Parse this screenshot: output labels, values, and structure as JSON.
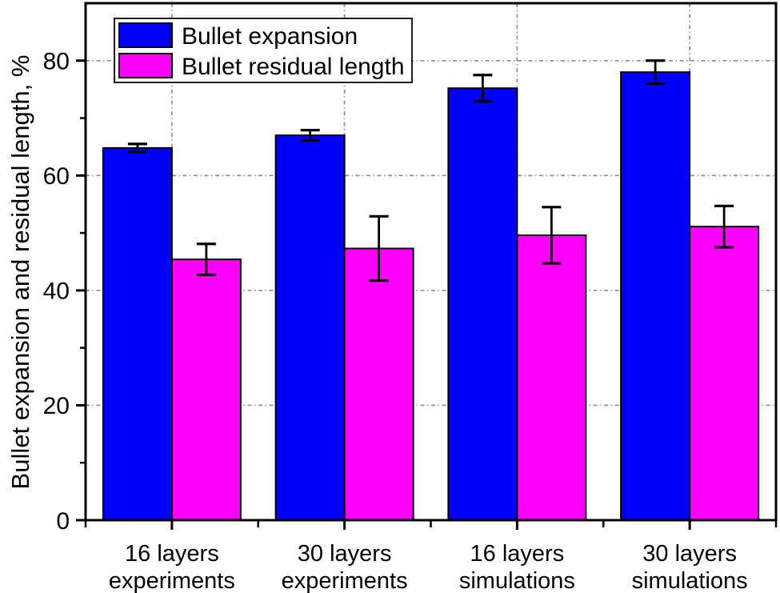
{
  "chart_data": {
    "type": "bar",
    "title": "",
    "xlabel": "",
    "ylabel": "Bullet expansion and residual length, %",
    "ylim": [
      0,
      90
    ],
    "yticks": [
      0,
      20,
      40,
      60,
      80
    ],
    "minor_ytick_step": 10,
    "grid": true,
    "grid_style": "dashed",
    "legend_position": "top-left",
    "categories": [
      [
        "16 layers",
        "experiments"
      ],
      [
        "30 layers",
        "experiments"
      ],
      [
        "16 layers",
        "simulations"
      ],
      [
        "30 layers",
        "simulations"
      ]
    ],
    "series": [
      {
        "name": "Bullet expansion",
        "color": "#0000FF",
        "values": [
          64.8,
          67.0,
          75.2,
          78.0
        ],
        "errors": [
          0.7,
          0.9,
          2.3,
          2.0
        ]
      },
      {
        "name": "Bullet residual length",
        "color": "#FF00FF",
        "values": [
          45.4,
          47.3,
          49.6,
          51.1
        ],
        "errors": [
          2.7,
          5.6,
          4.9,
          3.6
        ]
      }
    ]
  },
  "colors": {
    "axis": "#000000",
    "grid": "#8c8c8c",
    "bar_edge": "#000000",
    "error_bar": "#000000",
    "legend_border": "#222222",
    "background": "#ffffff"
  }
}
